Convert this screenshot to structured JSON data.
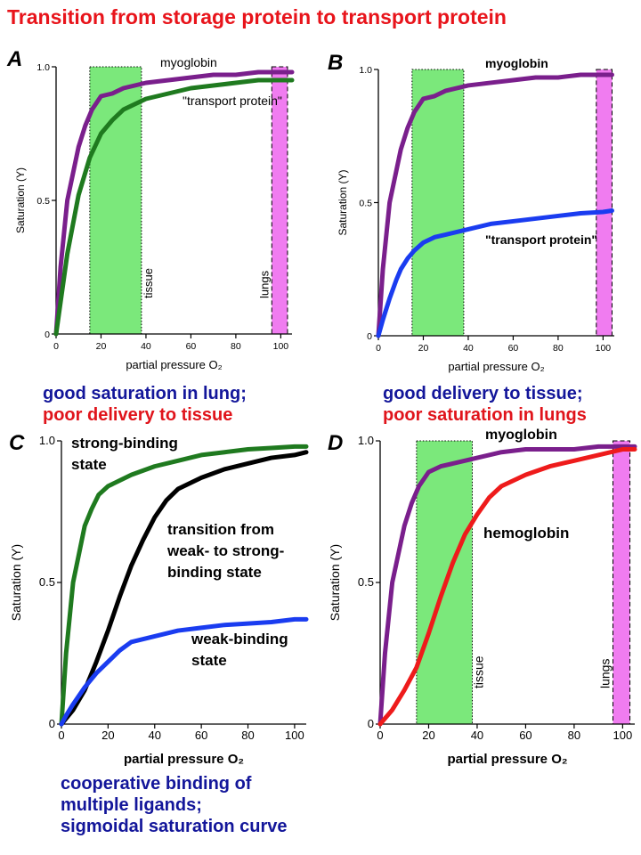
{
  "title": "Transition from storage protein to transport protein",
  "captions": {
    "A": [
      "good saturation in lung;",
      "poor delivery to tissue"
    ],
    "B": [
      "good delivery to tissue;",
      "poor saturation in lungs"
    ],
    "C": [
      "cooperative binding of",
      "multiple ligands;",
      "sigmoidal saturation curve"
    ]
  },
  "credit": "",
  "colors": {
    "myoglobin": "#7a1f8c",
    "transport_green": "#1f7a1f",
    "transport_blue": "#1a3cf0",
    "hemoglobin": "#ee1b1b",
    "transition": "#000000",
    "tissue_band": "#7be87b",
    "lungs_band": "#f07cf0"
  },
  "chart_data": [
    {
      "panel": "A",
      "type": "line",
      "xlabel": "partial pressure O₂",
      "ylabel": "Saturation (Y)",
      "xlim": [
        0,
        105
      ],
      "ylim": [
        0,
        1
      ],
      "xticks": [
        0,
        20,
        40,
        60,
        80,
        100
      ],
      "yticks": [
        "0",
        "0.5",
        "1.0"
      ],
      "bands": [
        {
          "label": "tissue",
          "x": [
            15,
            38
          ]
        },
        {
          "label": "lungs",
          "x": [
            96,
            103
          ]
        }
      ],
      "series": [
        {
          "name": "myoglobin",
          "color": "#7a1f8c",
          "x": [
            0,
            2,
            5,
            8,
            10,
            13,
            16,
            20,
            25,
            30,
            40,
            50,
            60,
            70,
            80,
            90,
            100,
            105
          ],
          "y": [
            0,
            0.25,
            0.5,
            0.62,
            0.7,
            0.78,
            0.84,
            0.89,
            0.9,
            0.92,
            0.94,
            0.95,
            0.96,
            0.97,
            0.97,
            0.98,
            0.98,
            0.98
          ]
        },
        {
          "name": "\"transport protein\"",
          "color": "#1f7a1f",
          "x": [
            0,
            2,
            5,
            10,
            15,
            20,
            25,
            30,
            35,
            40,
            50,
            60,
            70,
            80,
            90,
            100,
            105
          ],
          "y": [
            0,
            0.12,
            0.3,
            0.52,
            0.66,
            0.75,
            0.8,
            0.84,
            0.86,
            0.88,
            0.9,
            0.92,
            0.93,
            0.94,
            0.95,
            0.95,
            0.95
          ]
        }
      ]
    },
    {
      "panel": "B",
      "type": "line",
      "xlabel": "partial pressure O₂",
      "ylabel": "Saturation (Y)",
      "xlim": [
        0,
        105
      ],
      "ylim": [
        0,
        1
      ],
      "xticks": [
        0,
        20,
        40,
        60,
        80,
        100
      ],
      "yticks": [
        "0",
        "0.5",
        "1.0"
      ],
      "bands": [
        {
          "label": "",
          "x": [
            15,
            38
          ]
        },
        {
          "label": "",
          "x": [
            97,
            104
          ]
        }
      ],
      "series": [
        {
          "name": "myoglobin",
          "color": "#7a1f8c",
          "x": [
            0,
            2,
            5,
            8,
            10,
            13,
            16,
            20,
            25,
            30,
            40,
            50,
            60,
            70,
            80,
            90,
            100,
            104
          ],
          "y": [
            0,
            0.25,
            0.5,
            0.62,
            0.7,
            0.78,
            0.84,
            0.89,
            0.9,
            0.92,
            0.94,
            0.95,
            0.96,
            0.97,
            0.97,
            0.98,
            0.98,
            0.98
          ]
        },
        {
          "name": "\"transport protein\"",
          "color": "#1a3cf0",
          "x": [
            0,
            2,
            5,
            8,
            10,
            13,
            16,
            20,
            25,
            30,
            40,
            50,
            60,
            70,
            80,
            90,
            100,
            104
          ],
          "y": [
            0,
            0.06,
            0.14,
            0.21,
            0.25,
            0.29,
            0.32,
            0.35,
            0.37,
            0.38,
            0.4,
            0.42,
            0.43,
            0.44,
            0.45,
            0.46,
            0.465,
            0.47
          ]
        }
      ]
    },
    {
      "panel": "C",
      "type": "line",
      "xlabel": "partial pressure O₂",
      "ylabel": "Saturation (Y)",
      "xlim": [
        0,
        105
      ],
      "ylim": [
        0,
        1
      ],
      "xticks": [
        0,
        20,
        40,
        60,
        80,
        100
      ],
      "yticks": [
        "0",
        "0.5",
        "1.0"
      ],
      "bands": [],
      "series": [
        {
          "name": "strong-binding state",
          "color": "#1f7a1f",
          "x": [
            0,
            2,
            5,
            8,
            10,
            13,
            16,
            20,
            25,
            30,
            40,
            50,
            60,
            70,
            80,
            90,
            100,
            105
          ],
          "y": [
            0,
            0.25,
            0.5,
            0.62,
            0.7,
            0.76,
            0.81,
            0.84,
            0.86,
            0.88,
            0.91,
            0.93,
            0.95,
            0.96,
            0.97,
            0.975,
            0.98,
            0.98
          ]
        },
        {
          "name": "transition from weak- to strong-binding state",
          "color": "#000000",
          "x": [
            0,
            5,
            10,
            15,
            20,
            25,
            30,
            35,
            40,
            45,
            50,
            60,
            70,
            80,
            90,
            100,
            105
          ],
          "y": [
            0,
            0.05,
            0.12,
            0.22,
            0.33,
            0.45,
            0.56,
            0.65,
            0.73,
            0.79,
            0.83,
            0.87,
            0.9,
            0.92,
            0.94,
            0.95,
            0.96
          ]
        },
        {
          "name": "weak-binding state",
          "color": "#1a3cf0",
          "x": [
            0,
            2,
            5,
            10,
            15,
            20,
            25,
            30,
            40,
            50,
            60,
            70,
            80,
            90,
            100,
            105
          ],
          "y": [
            0,
            0.03,
            0.07,
            0.13,
            0.18,
            0.22,
            0.26,
            0.29,
            0.31,
            0.33,
            0.34,
            0.35,
            0.355,
            0.36,
            0.37,
            0.37
          ]
        }
      ],
      "labels": {
        "strong": [
          "strong-binding",
          "state"
        ],
        "transition": [
          "transition from",
          "weak- to strong-",
          "binding state"
        ],
        "weak": [
          "weak-binding",
          "state"
        ]
      }
    },
    {
      "panel": "D",
      "type": "line",
      "xlabel": "partial pressure O₂",
      "ylabel": "Saturation (Y)",
      "xlim": [
        0,
        105
      ],
      "ylim": [
        0,
        1
      ],
      "xticks": [
        0,
        20,
        40,
        60,
        80,
        100
      ],
      "yticks": [
        "0",
        "0.5",
        "1.0"
      ],
      "bands": [
        {
          "label": "tissue",
          "x": [
            15,
            38
          ]
        },
        {
          "label": "lungs",
          "x": [
            96,
            103
          ]
        }
      ],
      "series": [
        {
          "name": "myoglobin",
          "color": "#7a1f8c",
          "x": [
            0,
            2,
            5,
            8,
            10,
            13,
            16,
            20,
            25,
            30,
            40,
            50,
            60,
            70,
            80,
            90,
            100,
            105
          ],
          "y": [
            0,
            0.25,
            0.5,
            0.62,
            0.7,
            0.78,
            0.84,
            0.89,
            0.91,
            0.92,
            0.94,
            0.96,
            0.97,
            0.97,
            0.97,
            0.98,
            0.98,
            0.98
          ]
        },
        {
          "name": "hemoglobin",
          "color": "#ee1b1b",
          "x": [
            0,
            5,
            10,
            15,
            20,
            25,
            30,
            35,
            40,
            45,
            50,
            60,
            70,
            80,
            90,
            100,
            105
          ],
          "y": [
            0,
            0.05,
            0.12,
            0.2,
            0.32,
            0.45,
            0.57,
            0.67,
            0.74,
            0.8,
            0.84,
            0.88,
            0.91,
            0.93,
            0.95,
            0.97,
            0.97
          ]
        }
      ]
    }
  ]
}
